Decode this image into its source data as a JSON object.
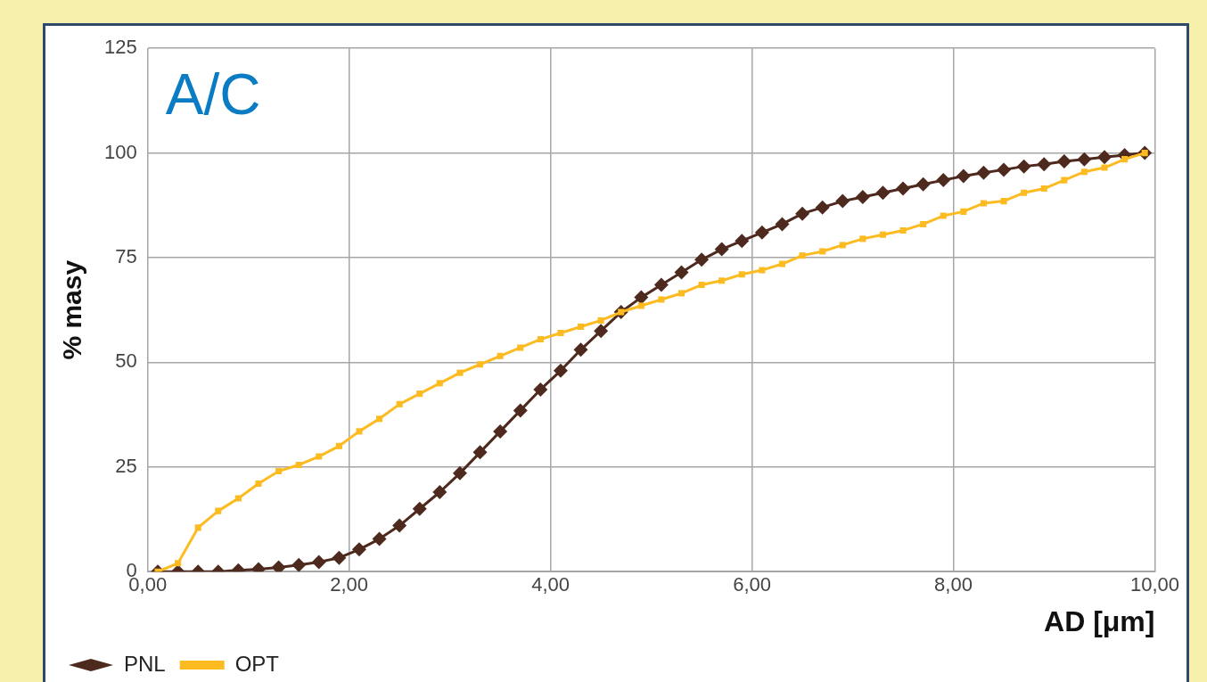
{
  "chart_data": {
    "type": "line",
    "ylabel": "% masy",
    "xlabel": "AD [μm]",
    "annotations": [
      "A/C"
    ],
    "xlim": [
      0,
      10
    ],
    "xticks": [
      {
        "value": 0,
        "label": "0,00"
      },
      {
        "value": 2,
        "label": "2,00"
      },
      {
        "value": 4,
        "label": "4,00"
      },
      {
        "value": 6,
        "label": "6,00"
      },
      {
        "value": 8,
        "label": "8,00"
      },
      {
        "value": 10,
        "label": "10,00"
      }
    ],
    "ylim": [
      0,
      125
    ],
    "yticks": [
      0,
      25,
      50,
      75,
      100,
      125
    ],
    "grid": true,
    "legend": "bottom",
    "line_style": "solid",
    "x": [
      0.1,
      0.3,
      0.5,
      0.7,
      0.9,
      1.1,
      1.3,
      1.5,
      1.7,
      1.9,
      2.1,
      2.3,
      2.5,
      2.7,
      2.9,
      3.1,
      3.3,
      3.5,
      3.7,
      3.9,
      4.1,
      4.3,
      4.5,
      4.7,
      4.9,
      5.1,
      5.3,
      5.5,
      5.7,
      5.9,
      6.1,
      6.3,
      6.5,
      6.7,
      6.9,
      7.1,
      7.3,
      7.5,
      7.7,
      7.9,
      8.1,
      8.3,
      8.5,
      8.7,
      8.9,
      9.1,
      9.3,
      9.5,
      9.7,
      9.9
    ],
    "series": [
      {
        "name": "PNL",
        "color": "#4e2a1e",
        "marker": "diamond",
        "values": [
          0,
          0,
          0,
          0,
          0.3,
          0.6,
          1,
          1.6,
          2.3,
          3.3,
          5.3,
          7.8,
          11,
          15,
          19,
          23.5,
          28.5,
          33.5,
          38.5,
          43.5,
          48,
          53,
          57.5,
          62,
          65.5,
          68.5,
          71.5,
          74.5,
          77,
          79,
          81,
          83,
          85.5,
          87,
          88.5,
          89.5,
          90.5,
          91.5,
          92.5,
          93.5,
          94.5,
          95.3,
          96,
          96.8,
          97.3,
          98,
          98.5,
          99,
          99.5,
          100
        ]
      },
      {
        "name": "OPT",
        "color": "#fbbb21",
        "marker": "square",
        "values": [
          0,
          2,
          10.5,
          14.5,
          17.5,
          21,
          24,
          25.5,
          27.5,
          30,
          33.5,
          36.5,
          40,
          42.5,
          45,
          47.5,
          49.5,
          51.5,
          53.5,
          55.5,
          57,
          58.5,
          60,
          62,
          63.5,
          65,
          66.5,
          68.5,
          69.5,
          71,
          72,
          73.5,
          75.5,
          76.5,
          78,
          79.5,
          80.5,
          81.5,
          83,
          85,
          86,
          88,
          88.5,
          90.5,
          91.5,
          93.5,
          95.5,
          96.5,
          98.5,
          100
        ]
      }
    ]
  }
}
